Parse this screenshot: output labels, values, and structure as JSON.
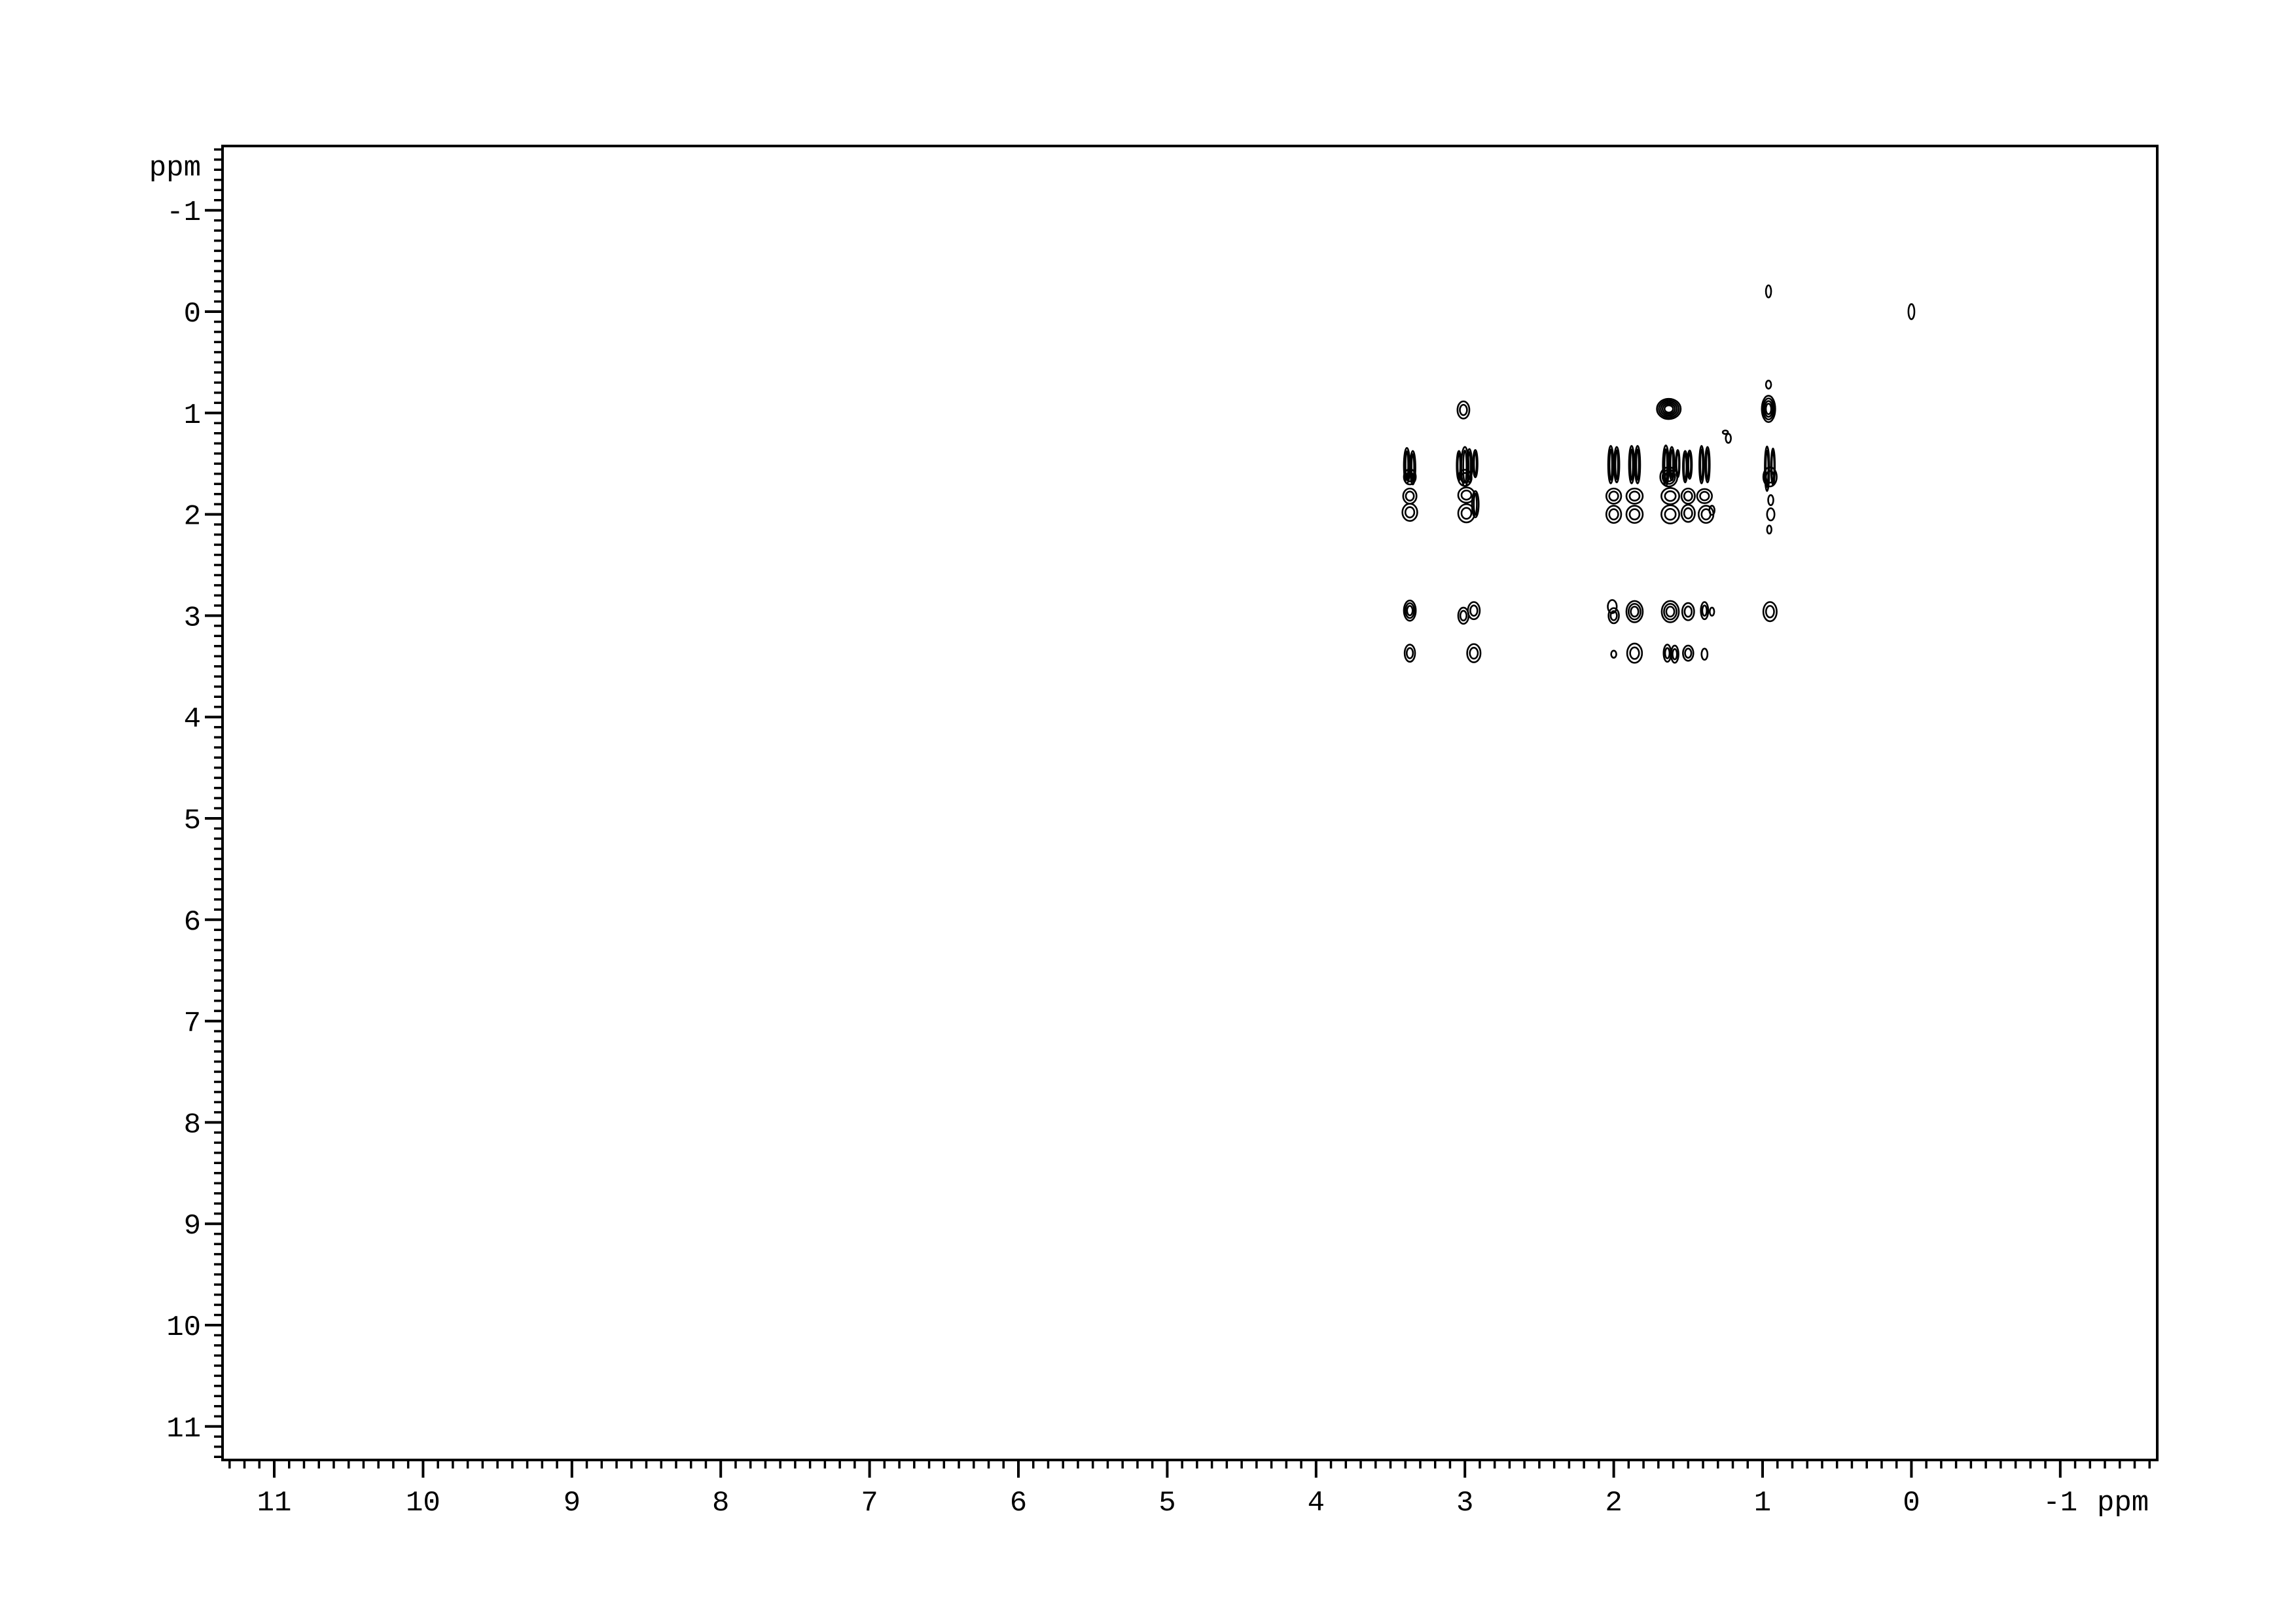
{
  "window": {
    "background": "#ffffff",
    "foreground": "#000000"
  },
  "chart_data": {
    "type": "scatter",
    "subtype": "2D NMR contour spectrum (cross-peak map)",
    "title": "",
    "xlabel": "ppm",
    "ylabel": "ppm",
    "grid": false,
    "legend": false,
    "x_axis": {
      "unit_label": "ppm",
      "major_ticks": [
        11,
        10,
        9,
        8,
        7,
        6,
        5,
        4,
        3,
        2,
        1,
        0,
        -1
      ],
      "minor_step": 0.1,
      "range": [
        11.35,
        -1.67
      ],
      "inverted": true
    },
    "y_axis": {
      "unit_label": "ppm",
      "major_ticks": [
        -1,
        0,
        1,
        2,
        3,
        4,
        5,
        6,
        7,
        8,
        9,
        10,
        11
      ],
      "minor_step": 0.1,
      "range": [
        -1.64,
        11.33
      ],
      "direction": "down"
    },
    "peaks": [
      {
        "f2": 3.39,
        "f1": 1.52,
        "w": 0.04,
        "h": 0.35,
        "k": "streak"
      },
      {
        "f2": 3.35,
        "f1": 1.54,
        "w": 0.035,
        "h": 0.33,
        "k": "streak"
      },
      {
        "f2": 3.37,
        "f1": 1.63,
        "w": 0.08,
        "h": 0.15,
        "k": "blob",
        "r": 2
      },
      {
        "f2": 3.37,
        "f1": 1.82,
        "w": 0.09,
        "h": 0.15,
        "k": "blob",
        "r": 2
      },
      {
        "f2": 3.37,
        "f1": 1.98,
        "w": 0.1,
        "h": 0.17,
        "k": "blob",
        "r": 2
      },
      {
        "f2": 3.37,
        "f1": 2.95,
        "w": 0.08,
        "h": 0.2,
        "k": "blob",
        "r": 3
      },
      {
        "f2": 3.37,
        "f1": 3.37,
        "w": 0.07,
        "h": 0.17,
        "k": "blob",
        "r": 2
      },
      {
        "f2": 3.04,
        "f1": 1.52,
        "w": 0.03,
        "h": 0.29,
        "k": "streak"
      },
      {
        "f2": 3.0,
        "f1": 1.53,
        "w": 0.05,
        "h": 0.39,
        "k": "streak"
      },
      {
        "f2": 2.97,
        "f1": 1.52,
        "w": 0.035,
        "h": 0.33,
        "k": "streak"
      },
      {
        "f2": 2.93,
        "f1": 1.5,
        "w": 0.03,
        "h": 0.27,
        "k": "streak"
      },
      {
        "f2": 3.01,
        "f1": 0.97,
        "w": 0.08,
        "h": 0.17,
        "k": "blob",
        "r": 2
      },
      {
        "f2": 3.0,
        "f1": 1.64,
        "w": 0.09,
        "h": 0.16,
        "k": "blob",
        "r": 2
      },
      {
        "f2": 2.99,
        "f1": 1.81,
        "w": 0.11,
        "h": 0.15,
        "k": "blob",
        "r": 2
      },
      {
        "f2": 2.99,
        "f1": 1.99,
        "w": 0.11,
        "h": 0.18,
        "k": "blob",
        "r": 2
      },
      {
        "f2": 2.93,
        "f1": 1.9,
        "w": 0.045,
        "h": 0.26,
        "k": "streak"
      },
      {
        "f2": 3.01,
        "f1": 3.0,
        "w": 0.07,
        "h": 0.16,
        "k": "blob",
        "r": 2
      },
      {
        "f2": 2.94,
        "f1": 2.95,
        "w": 0.08,
        "h": 0.17,
        "k": "blob",
        "r": 2
      },
      {
        "f2": 2.94,
        "f1": 3.37,
        "w": 0.09,
        "h": 0.18,
        "k": "blob",
        "r": 2
      },
      {
        "f2": 2.02,
        "f1": 1.51,
        "w": 0.035,
        "h": 0.37,
        "k": "streak"
      },
      {
        "f2": 1.98,
        "f1": 1.51,
        "w": 0.035,
        "h": 0.35,
        "k": "streak"
      },
      {
        "f2": 2.0,
        "f1": 1.82,
        "w": 0.1,
        "h": 0.15,
        "k": "blob",
        "r": 2
      },
      {
        "f2": 2.0,
        "f1": 2.0,
        "w": 0.1,
        "h": 0.17,
        "k": "blob",
        "r": 2
      },
      {
        "f2": 2.01,
        "f1": 2.91,
        "w": 0.06,
        "h": 0.13,
        "k": "blob",
        "r": 1
      },
      {
        "f2": 2.0,
        "f1": 3.0,
        "w": 0.07,
        "h": 0.15,
        "k": "blob",
        "r": 2
      },
      {
        "f2": 2.0,
        "f1": 3.38,
        "w": 0.035,
        "h": 0.07,
        "k": "dot"
      },
      {
        "f2": 1.88,
        "f1": 1.51,
        "w": 0.035,
        "h": 0.37,
        "k": "streak"
      },
      {
        "f2": 1.84,
        "f1": 1.51,
        "w": 0.035,
        "h": 0.37,
        "k": "streak"
      },
      {
        "f2": 1.86,
        "f1": 1.82,
        "w": 0.11,
        "h": 0.15,
        "k": "blob",
        "r": 2
      },
      {
        "f2": 1.86,
        "f1": 2.0,
        "w": 0.11,
        "h": 0.17,
        "k": "blob",
        "r": 2
      },
      {
        "f2": 1.86,
        "f1": 2.96,
        "w": 0.11,
        "h": 0.21,
        "k": "blob",
        "r": 3
      },
      {
        "f2": 1.86,
        "f1": 3.37,
        "w": 0.1,
        "h": 0.19,
        "k": "blob",
        "r": 2
      },
      {
        "f2": 1.63,
        "f1": 0.96,
        "w": 0.16,
        "h": 0.2,
        "k": "blob",
        "r": 5
      },
      {
        "f2": 1.65,
        "f1": 1.52,
        "w": 0.04,
        "h": 0.4,
        "k": "streak"
      },
      {
        "f2": 1.61,
        "f1": 1.5,
        "w": 0.035,
        "h": 0.33,
        "k": "streak"
      },
      {
        "f2": 1.57,
        "f1": 1.5,
        "w": 0.025,
        "h": 0.27,
        "k": "streak"
      },
      {
        "f2": 1.63,
        "f1": 1.63,
        "w": 0.115,
        "h": 0.19,
        "k": "blob",
        "r": 3
      },
      {
        "f2": 1.62,
        "f1": 1.82,
        "w": 0.12,
        "h": 0.16,
        "k": "blob",
        "r": 2
      },
      {
        "f2": 1.62,
        "f1": 2.0,
        "w": 0.12,
        "h": 0.18,
        "k": "blob",
        "r": 2
      },
      {
        "f2": 1.62,
        "f1": 2.96,
        "w": 0.115,
        "h": 0.21,
        "k": "blob",
        "r": 3
      },
      {
        "f2": 1.64,
        "f1": 3.37,
        "w": 0.05,
        "h": 0.17,
        "k": "blob",
        "r": 2
      },
      {
        "f2": 1.59,
        "f1": 3.38,
        "w": 0.05,
        "h": 0.17,
        "k": "blob",
        "r": 2
      },
      {
        "f2": 1.52,
        "f1": 1.53,
        "w": 0.03,
        "h": 0.31,
        "k": "streak"
      },
      {
        "f2": 1.49,
        "f1": 1.51,
        "w": 0.03,
        "h": 0.28,
        "k": "streak"
      },
      {
        "f2": 1.5,
        "f1": 1.82,
        "w": 0.09,
        "h": 0.15,
        "k": "blob",
        "r": 2
      },
      {
        "f2": 1.5,
        "f1": 1.99,
        "w": 0.09,
        "h": 0.17,
        "k": "blob",
        "r": 2
      },
      {
        "f2": 1.5,
        "f1": 2.96,
        "w": 0.08,
        "h": 0.17,
        "k": "blob",
        "r": 2
      },
      {
        "f2": 1.5,
        "f1": 3.37,
        "w": 0.07,
        "h": 0.15,
        "k": "blob",
        "r": 2
      },
      {
        "f2": 1.41,
        "f1": 1.51,
        "w": 0.03,
        "h": 0.37,
        "k": "streak"
      },
      {
        "f2": 1.37,
        "f1": 1.51,
        "w": 0.03,
        "h": 0.35,
        "k": "streak"
      },
      {
        "f2": 1.39,
        "f1": 1.82,
        "w": 0.1,
        "h": 0.14,
        "k": "blob",
        "r": 2
      },
      {
        "f2": 1.38,
        "f1": 2.0,
        "w": 0.1,
        "h": 0.17,
        "k": "blob",
        "r": 2
      },
      {
        "f2": 1.34,
        "f1": 1.96,
        "w": 0.035,
        "h": 0.09,
        "k": "dot"
      },
      {
        "f2": 1.39,
        "f1": 2.95,
        "w": 0.05,
        "h": 0.17,
        "k": "blob",
        "r": 2
      },
      {
        "f2": 1.34,
        "f1": 2.96,
        "w": 0.03,
        "h": 0.08,
        "k": "dot"
      },
      {
        "f2": 1.39,
        "f1": 3.38,
        "w": 0.04,
        "h": 0.11,
        "k": "dot"
      },
      {
        "f2": 1.25,
        "f1": 1.19,
        "w": 0.035,
        "h": 0.035,
        "k": "dot"
      },
      {
        "f2": 1.23,
        "f1": 1.25,
        "w": 0.035,
        "h": 0.09,
        "k": "dot"
      },
      {
        "f2": 0.96,
        "f1": -0.2,
        "w": 0.035,
        "h": 0.12,
        "k": "dot"
      },
      {
        "f2": 0.96,
        "f1": 0.72,
        "w": 0.035,
        "h": 0.08,
        "k": "dot"
      },
      {
        "f2": 0.96,
        "f1": 0.96,
        "w": 0.09,
        "h": 0.26,
        "k": "blob",
        "r": 4
      },
      {
        "f2": 0.97,
        "f1": 1.55,
        "w": 0.03,
        "h": 0.44,
        "k": "streak"
      },
      {
        "f2": 0.93,
        "f1": 1.53,
        "w": 0.025,
        "h": 0.36,
        "k": "streak"
      },
      {
        "f2": 0.95,
        "f1": 1.63,
        "w": 0.09,
        "h": 0.19,
        "k": "blob",
        "r": 2
      },
      {
        "f2": 0.945,
        "f1": 1.86,
        "w": 0.035,
        "h": 0.1,
        "k": "dot"
      },
      {
        "f2": 0.945,
        "f1": 2.0,
        "w": 0.05,
        "h": 0.12,
        "k": "dot"
      },
      {
        "f2": 0.955,
        "f1": 2.15,
        "w": 0.03,
        "h": 0.08,
        "k": "dot"
      },
      {
        "f2": 0.95,
        "f1": 2.96,
        "w": 0.09,
        "h": 0.19,
        "k": "blob",
        "r": 2
      },
      {
        "f2": 0.0,
        "f1": 0.0,
        "w": 0.04,
        "h": 0.15,
        "k": "dot"
      }
    ]
  }
}
